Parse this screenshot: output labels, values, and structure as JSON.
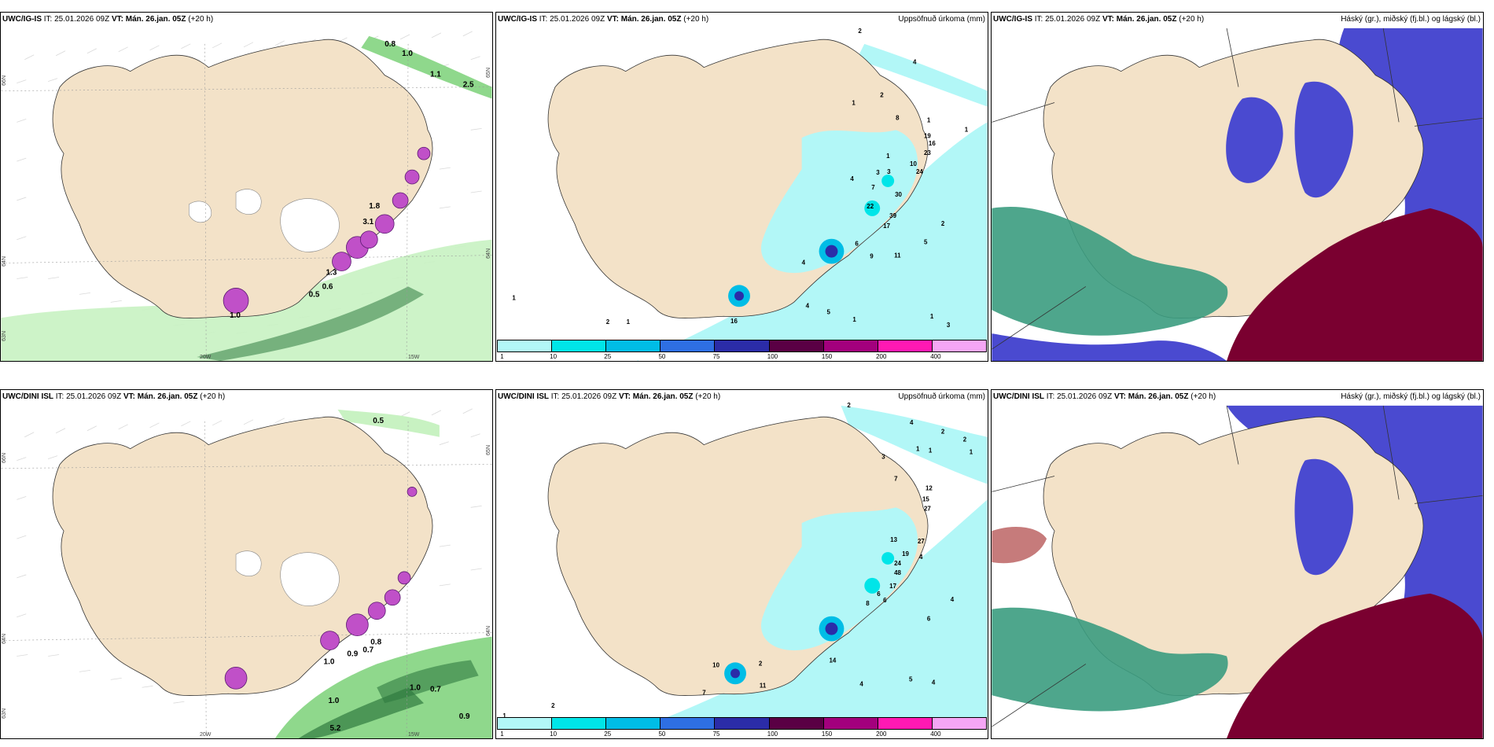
{
  "panels": [
    {
      "model": "UWC/IG-IS",
      "it_label": "IT:",
      "it_value": "25.01.2026 09Z",
      "vt_label": "VT:",
      "vt_value": "Mán. 26.jan. 05Z",
      "lead": "(+20 h)",
      "title_right": "",
      "type": "wind",
      "lat_labels": [
        "66N",
        "64N",
        "63N"
      ],
      "lon_labels": [
        "20W",
        "15W"
      ],
      "right_lat_labels": [
        "65N",
        "64N"
      ],
      "values": [
        "0.8",
        "1.0",
        "1.1",
        "2.5",
        "1.3",
        "0.6",
        "0.5",
        "1.0",
        "3.1",
        "1.8"
      ]
    },
    {
      "model": "UWC/IG-IS",
      "it_label": "IT:",
      "it_value": "25.01.2026 09Z",
      "vt_label": "VT:",
      "vt_value": "Mán. 26.jan. 05Z",
      "lead": "(+20 h)",
      "title_right": "Uppsöfnuð úrkoma (mm)",
      "type": "precip",
      "values": [
        "2",
        "4",
        "1",
        "2",
        "8",
        "1",
        "1",
        "19",
        "16",
        "23",
        "10",
        "24",
        "3",
        "1",
        "3",
        "4",
        "7",
        "30",
        "39",
        "22",
        "17",
        "2",
        "5",
        "11",
        "9",
        "6",
        "4",
        "1",
        "5",
        "4",
        "3",
        "1",
        "16",
        "2",
        "1",
        "1"
      ]
    },
    {
      "model": "UWC/IG-IS",
      "it_label": "IT:",
      "it_value": "25.01.2026 09Z",
      "vt_label": "VT:",
      "vt_value": "Mán. 26.jan. 05Z",
      "lead": "(+20 h)",
      "title_right": "Háský (gr.), miðský (fj.bl.) og lágský (bl.)",
      "type": "cloud"
    },
    {
      "model": "UWC/DINI ISL",
      "it_label": "IT:",
      "it_value": "25.01.2026 09Z",
      "vt_label": "VT:",
      "vt_value": "Mán. 26.jan. 05Z",
      "lead": "(+20 h)",
      "title_right": "",
      "type": "wind",
      "lat_labels": [
        "66N",
        "64N",
        "63N"
      ],
      "lon_labels": [
        "20W",
        "15W"
      ],
      "right_lat_labels": [
        "65N",
        "64N"
      ],
      "values": [
        "0.5",
        "1.0",
        "0.9",
        "0.7",
        "0.8",
        "1.0",
        "0.7",
        "1.0",
        "0.9",
        "5.2"
      ]
    },
    {
      "model": "UWC/DINI ISL",
      "it_label": "IT:",
      "it_value": "25.01.2026 09Z",
      "vt_label": "VT:",
      "vt_value": "Mán. 26.jan. 05Z",
      "lead": "(+20 h)",
      "title_right": "Uppsöfnuð úrkoma (mm)",
      "type": "precip",
      "values": [
        "2",
        "4",
        "2",
        "2",
        "1",
        "1",
        "1",
        "3",
        "7",
        "12",
        "15",
        "27",
        "13",
        "27",
        "19",
        "24",
        "48",
        "17",
        "6",
        "8",
        "6",
        "4",
        "4",
        "6",
        "5",
        "4",
        "14",
        "2",
        "11",
        "7",
        "2",
        "1",
        "10",
        "4"
      ]
    },
    {
      "model": "UWC/DINI ISL",
      "it_label": "IT:",
      "it_value": "25.01.2026 09Z",
      "vt_label": "VT:",
      "vt_value": "Mán. 26.jan. 05Z",
      "lead": "(+20 h)",
      "title_right": "Háský (gr.), miðský (fj.bl.) og lágský (bl.)",
      "type": "cloud"
    }
  ],
  "colorbar": {
    "ticks": [
      "1",
      "10",
      "25",
      "50",
      "75",
      "100",
      "150",
      "200",
      "400"
    ],
    "colors": [
      "#b2f7f7",
      "#00e5e8",
      "#00bde6",
      "#2e6fe3",
      "#2b2ca8",
      "#5a0044",
      "#a3007d",
      "#ff19b3",
      "#f5a6f5"
    ]
  },
  "colors": {
    "land": "#f3e2c8",
    "wind_green_light": "#c8f2c2",
    "wind_green_mid": "#8fd88c",
    "wind_green_dark": "#2f7a3f",
    "precip_cyan": "#b2f7f7",
    "high_cloud": "#3b9c80",
    "mid_cloud": "#4a4ad0",
    "low_cloud": "#7a0030"
  }
}
